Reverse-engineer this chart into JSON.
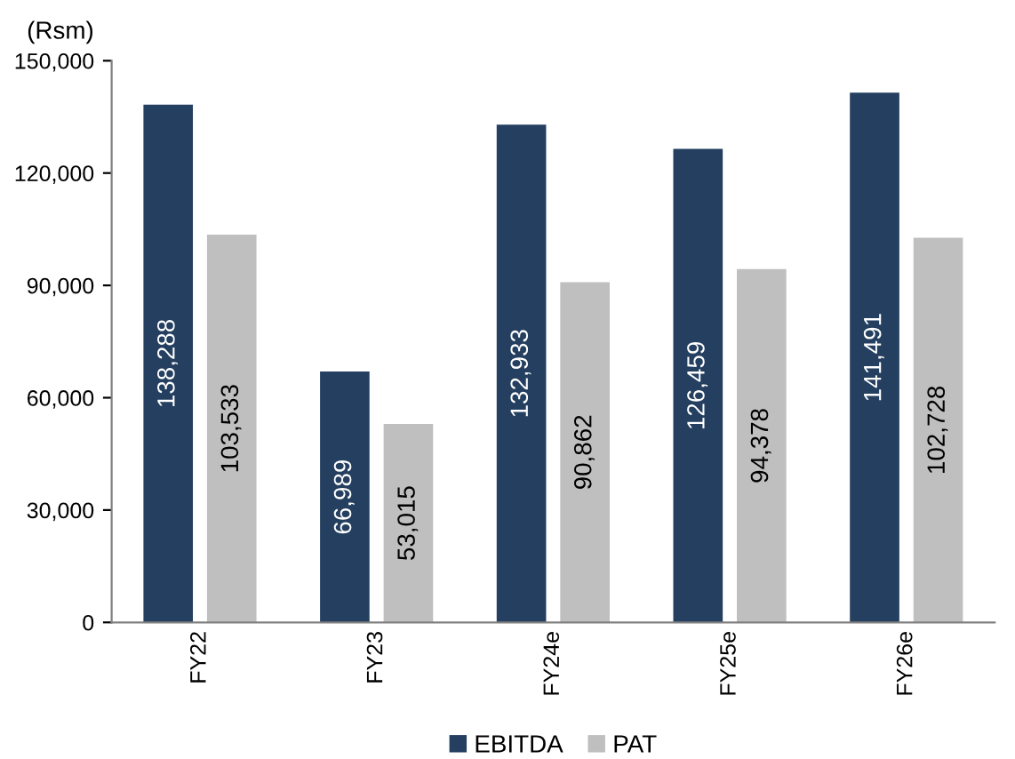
{
  "chart_data": {
    "type": "bar",
    "ylabel": "(Rsm)",
    "categories": [
      "FY22",
      "FY23",
      "FY24e",
      "FY25e",
      "FY26e"
    ],
    "series": [
      {
        "name": "EBITDA",
        "color": "#243f60",
        "values": [
          138288,
          66989,
          132933,
          126459,
          141491
        ],
        "value_labels": [
          "138,288",
          "66,989",
          "132,933",
          "126,459",
          "141,491"
        ]
      },
      {
        "name": "PAT",
        "color": "#bfbfbf",
        "values": [
          103533,
          53015,
          90862,
          94378,
          102728
        ],
        "value_labels": [
          "103,533",
          "53,015",
          "90,862",
          "94,378",
          "102,728"
        ]
      }
    ],
    "ylim": [
      0,
      150000
    ],
    "yticks": [
      {
        "value": 0,
        "label": "0"
      },
      {
        "value": 30000,
        "label": "30,000"
      },
      {
        "value": 60000,
        "label": "60,000"
      },
      {
        "value": 90000,
        "label": "90,000"
      },
      {
        "value": 120000,
        "label": "120,000"
      },
      {
        "value": 150000,
        "label": "150,000"
      }
    ],
    "grid": false,
    "legend": "bottom"
  }
}
